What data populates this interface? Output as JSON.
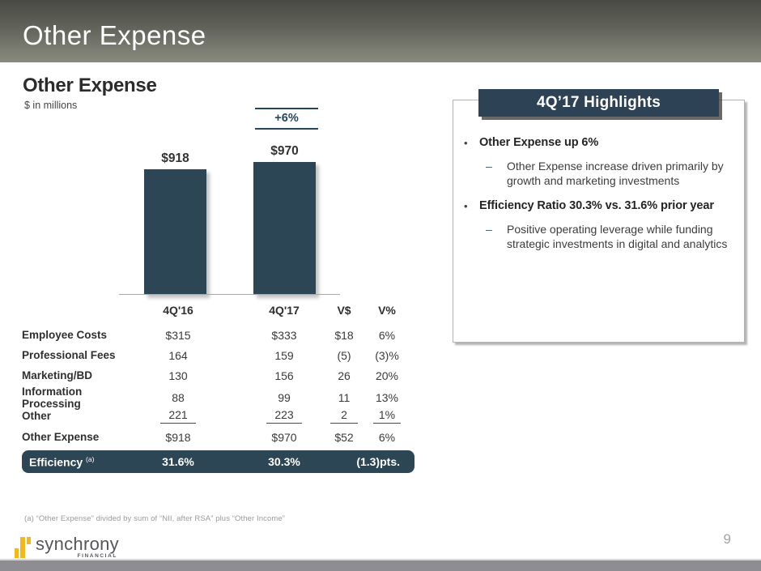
{
  "banner": {
    "title": "Other Expense"
  },
  "section": {
    "title": "Other Expense",
    "subtitle": "$ in millions"
  },
  "chart_data": {
    "type": "bar",
    "categories": [
      "4Q'16",
      "4Q'17"
    ],
    "values": [
      918,
      970
    ],
    "bar_labels": [
      "$918",
      "$970"
    ],
    "growth_label": "+6%",
    "title": "Other Expense",
    "xlabel": "",
    "ylabel": "$ in millions",
    "ylim": [
      0,
      1000
    ],
    "bar_color": "#2d4656",
    "legend": "none",
    "grid": false
  },
  "table": {
    "headers": {
      "col1": "4Q'16",
      "col2": "4Q'17",
      "col3": "V$",
      "col4": "V%"
    },
    "rows": [
      {
        "label": "Employee Costs",
        "q16": "$315",
        "q17": "$333",
        "vd": "$18",
        "vp": "6%"
      },
      {
        "label": "Professional Fees",
        "q16": "164",
        "q17": "159",
        "vd": "(5)",
        "vp": "(3)%"
      },
      {
        "label": "Marketing/BD",
        "q16": "130",
        "q17": "156",
        "vd": "26",
        "vp": "20%"
      },
      {
        "label": "Information Processing",
        "q16": "88",
        "q17": "99",
        "vd": "11",
        "vp": "13%"
      },
      {
        "label": "Other",
        "q16": "221",
        "q17": "223",
        "vd": "2",
        "vp": "1%"
      }
    ],
    "total_row": {
      "label": "Other Expense",
      "q16": "$918",
      "q17": "$970",
      "vd": "$52",
      "vp": "6%"
    },
    "efficiency_row": {
      "label": "Efficiency",
      "sup": "(a)",
      "q16": "31.6%",
      "q17": "30.3%",
      "var": "(1.3)pts."
    }
  },
  "highlights": {
    "title": "4Q’17 Highlights",
    "items": [
      {
        "text": "Other Expense up 6%",
        "subs": [
          "Other Expense increase driven primarily by growth and marketing investments"
        ]
      },
      {
        "text": "Efficiency Ratio 30.3% vs. 31.6% prior year",
        "subs": [
          "Positive operating leverage while funding strategic investments in digital and analytics"
        ]
      }
    ]
  },
  "footnote": "(a) “Other Expense” divided by sum of “NII, after RSA” plus “Other Income”",
  "logo": {
    "name": "synchrony",
    "sub": "FINANCIAL"
  },
  "page_number": "9",
  "colors": {
    "slate": "#2d4656",
    "banner_top": "#484a43",
    "banner_bottom": "#898b7f",
    "logo_yellow": "#f5b817",
    "bottom_bar": "#8e8e92"
  }
}
